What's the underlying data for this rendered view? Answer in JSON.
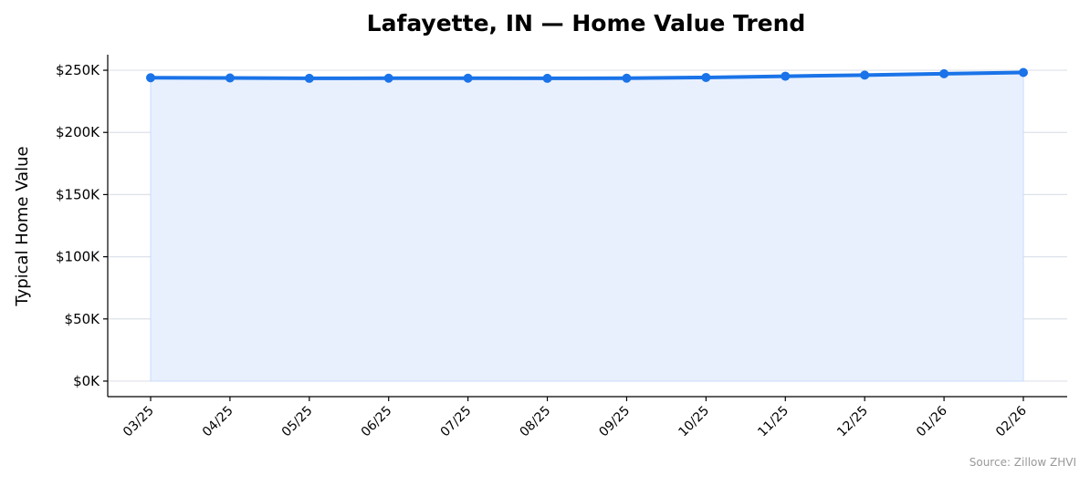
{
  "chart_data": {
    "type": "area",
    "title": "Lafayette, IN — Home Value Trend",
    "xlabel": "",
    "ylabel": "Typical Home Value",
    "x": [
      "03/25",
      "04/25",
      "05/25",
      "06/25",
      "07/25",
      "08/25",
      "09/25",
      "10/25",
      "11/25",
      "12/25",
      "01/26",
      "02/26"
    ],
    "series": [
      {
        "values": [
          244000,
          243800,
          243500,
          243600,
          243600,
          243500,
          243600,
          244200,
          245200,
          246100,
          247200,
          248200
        ]
      }
    ],
    "ylim": [
      -12500,
      262500
    ],
    "yticks": [
      0,
      50000,
      100000,
      150000,
      200000,
      250000
    ],
    "ytick_labels": [
      "$0K",
      "$50K",
      "$100K",
      "$150K",
      "$200K",
      "$250K"
    ],
    "grid": "horizontal",
    "legend": "none",
    "source": "Source: Zillow ZHVI",
    "colors": {
      "line": "#1a73e8",
      "fill": "#e8f0fe",
      "grid": "#dde2ea",
      "axis": "#000000"
    }
  }
}
